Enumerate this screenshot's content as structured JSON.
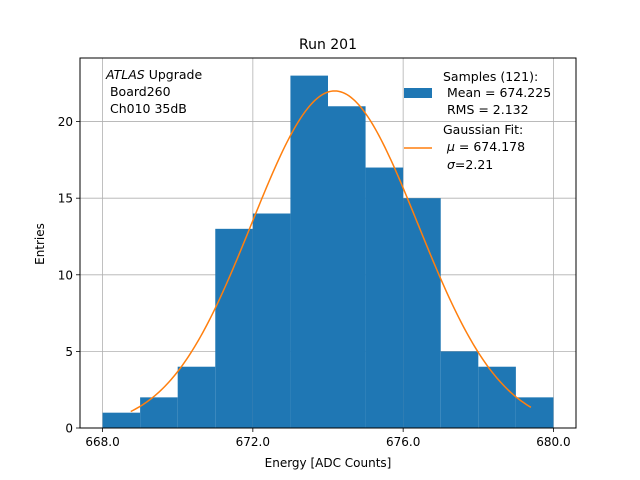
{
  "chart_data": {
    "type": "bar",
    "title": "Run 201",
    "xlabel": "Energy [ADC Counts]",
    "ylabel": "Entries",
    "xlim": [
      667.4,
      680.6
    ],
    "ylim": [
      0,
      24.15
    ],
    "grid": true,
    "x_ticks": [
      668,
      672,
      676,
      680
    ],
    "x_tick_labels": [
      "668.0",
      "672.0",
      "676.0",
      "680.0"
    ],
    "y_ticks": [
      0,
      5,
      10,
      15,
      20
    ],
    "y_tick_labels": [
      "0",
      "5",
      "10",
      "15",
      "20"
    ],
    "bin_edges": [
      668,
      669,
      670,
      671,
      672,
      673,
      674,
      675,
      676,
      677,
      678,
      679,
      680
    ],
    "counts": [
      1,
      2,
      4,
      13,
      14,
      23,
      21,
      17,
      15,
      5,
      4,
      2
    ],
    "bar_color": "#1f77b4",
    "fit": {
      "mu": 674.178,
      "sigma": 2.21,
      "amplitude": 22.0,
      "x_range": [
        668.75,
        679.4
      ],
      "color": "#ff7f0e"
    },
    "annotation": {
      "italic": "ATLAS",
      "rest": " Upgrade",
      "line2": " Board260",
      "line3": " Ch010 35dB"
    },
    "legend": {
      "placement": "top-right",
      "samples_lines": [
        "Samples (121):",
        " Mean = 674.225",
        " RMS = 2.132"
      ],
      "fit_title": "Gaussian Fit:",
      "fit_mu_symbol": "μ",
      "fit_mu_value": " = 674.178",
      "fit_sigma_symbol": "σ",
      "fit_sigma_value": "=2.21"
    }
  }
}
